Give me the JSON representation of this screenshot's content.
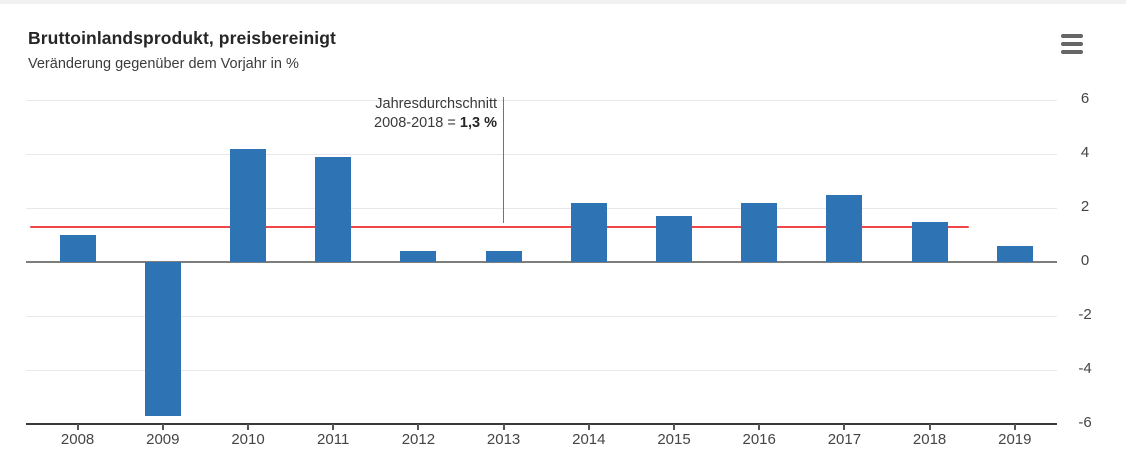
{
  "header": {
    "title": "Bruttoinlandsprodukt, preisbereinigt",
    "subtitle": "Veränderung gegenüber dem Vorjahr in %",
    "menu_icon": "hamburger-menu-icon"
  },
  "annotation": {
    "line1": "Jahresdurchschnitt",
    "line2_prefix": "2008-2018 = ",
    "line2_value": "1,3 %"
  },
  "chart_data": {
    "type": "bar",
    "title": "Bruttoinlandsprodukt, preisbereinigt",
    "subtitle": "Veränderung gegenüber dem Vorjahr in %",
    "xlabel": "",
    "ylabel": "Veränderung gegenüber dem Vorjahr in %",
    "categories": [
      "2008",
      "2009",
      "2010",
      "2011",
      "2012",
      "2013",
      "2014",
      "2015",
      "2016",
      "2017",
      "2018",
      "2019"
    ],
    "values": [
      1.0,
      -5.7,
      4.2,
      3.9,
      0.4,
      0.4,
      2.2,
      1.7,
      2.2,
      2.5,
      1.5,
      0.6
    ],
    "ylim": [
      -6,
      6
    ],
    "yticks": [
      6,
      4,
      2,
      0,
      -2,
      -4,
      -6
    ],
    "grid": true,
    "legend": false,
    "yaxis_position": "right",
    "average_line": {
      "value": 1.3,
      "label": "Jahresdurchschnitt 2008-2018 = 1,3 %",
      "from_year": "2008",
      "to_year": "2018"
    }
  },
  "colors": {
    "bar": "#2e73b3",
    "average_line": "#ef4648",
    "grid": "#e8e8e8",
    "zero_line": "#7d7d7d",
    "axis_line": "#3a3a3a",
    "title_text": "#262626",
    "axis_text": "#454545"
  }
}
